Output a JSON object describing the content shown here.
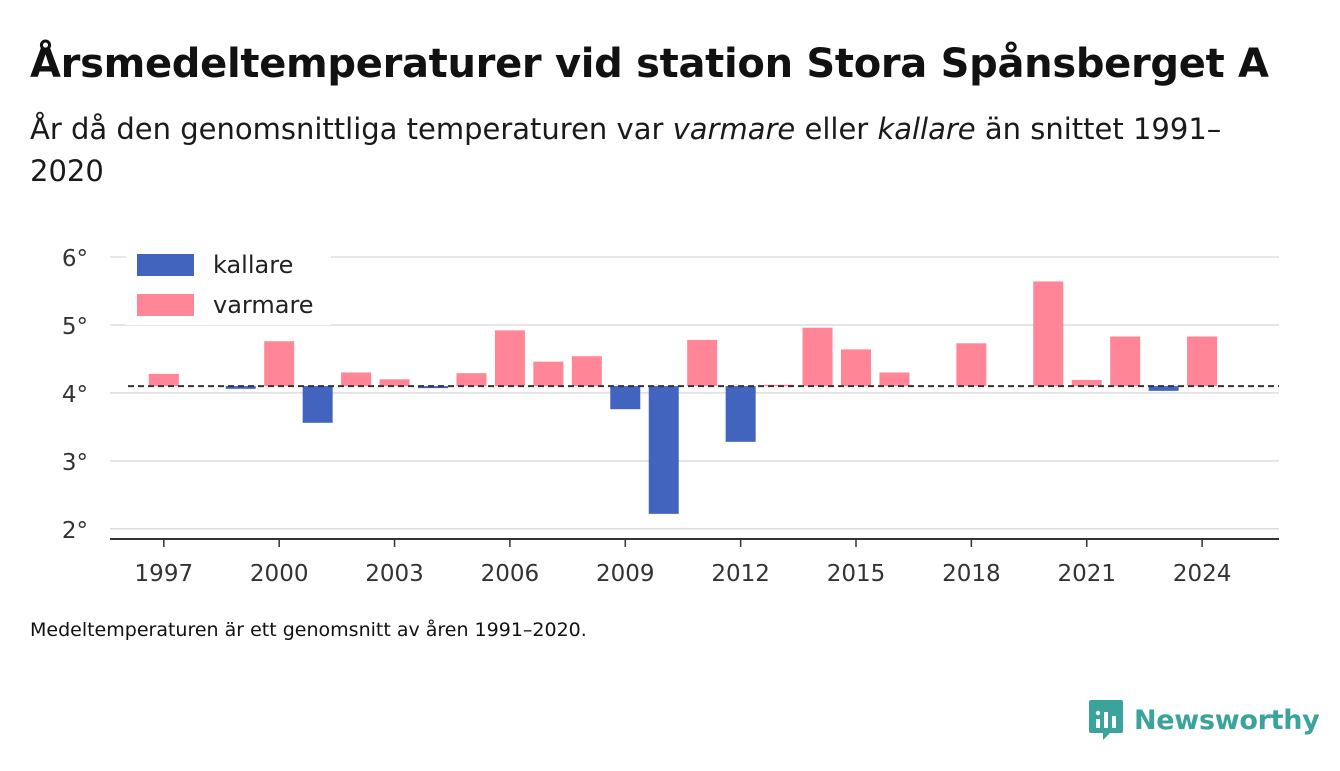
{
  "title": "Årsmedeltemperaturer vid station Stora Spånsberget A",
  "subtitle": {
    "before": "År då den genomsnittliga temperaturen var ",
    "warmer_word": "varmare",
    "middle": " eller ",
    "colder_word": "kallare",
    "after": " än snittet 1991–2020"
  },
  "footnote": "Medeltemperaturen är ett genomsnitt av åren 1991–2020.",
  "brand": {
    "name": "Newsworthy",
    "icon": "newsworthy-logo-icon",
    "color": "#3aa39b"
  },
  "chart_data": {
    "type": "bar",
    "baseline": 4.1,
    "ylim": [
      1.85,
      6.25
    ],
    "yticks": [
      2,
      3,
      4,
      5,
      6
    ],
    "ytick_suffix": "°",
    "xticks": [
      1997,
      2000,
      2003,
      2006,
      2009,
      2012,
      2015,
      2018,
      2021,
      2024
    ],
    "xlim": [
      1995.6,
      2026.0
    ],
    "grid": true,
    "legend_position": "top-left",
    "legend": [
      {
        "label": "kallare",
        "color": "#4263be"
      },
      {
        "label": "varmare",
        "color": "#ff8597"
      }
    ],
    "colors": {
      "colder": "#4263be",
      "warmer": "#ff8597"
    },
    "years": [
      1997,
      1999,
      2000,
      2001,
      2002,
      2003,
      2004,
      2005,
      2006,
      2007,
      2008,
      2009,
      2010,
      2011,
      2012,
      2013,
      2014,
      2015,
      2016,
      2018,
      2020,
      2021,
      2022,
      2023,
      2024
    ],
    "values": [
      4.28,
      4.06,
      4.76,
      3.56,
      4.3,
      4.2,
      4.07,
      4.29,
      4.92,
      4.46,
      4.54,
      3.76,
      2.22,
      4.78,
      3.28,
      4.12,
      4.96,
      4.64,
      4.3,
      4.73,
      5.64,
      4.19,
      4.83,
      4.03,
      4.83
    ]
  }
}
